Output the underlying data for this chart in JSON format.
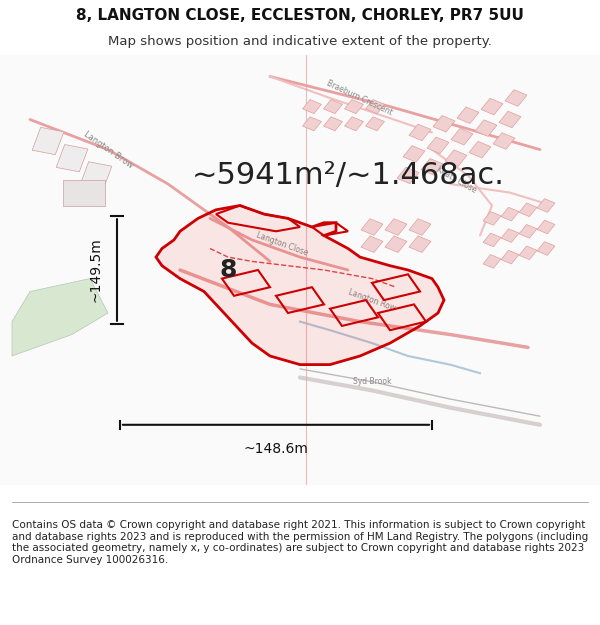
{
  "title_line1": "8, LANGTON CLOSE, ECCLESTON, CHORLEY, PR7 5UU",
  "title_line2": "Map shows position and indicative extent of the property.",
  "area_text": "~5941m²/~1.468ac.",
  "label_8": "8",
  "dim_vertical": "~149.5m",
  "dim_horizontal": "~148.6m",
  "footer_text": "Contains OS data © Crown copyright and database right 2021. This information is subject to Crown copyright and database rights 2023 and is reproduced with the permission of HM Land Registry. The polygons (including the associated geometry, namely x, y co-ordinates) are subject to Crown copyright and database rights 2023 Ordnance Survey 100026316.",
  "map_bg": "#f8f0f0",
  "map_bg2": "#ffffff",
  "road_color": "#e8a0a0",
  "road_color2": "#f0c0c0",
  "highlight_color": "#cc0000",
  "dim_color": "#111111",
  "text_color": "#222222",
  "footer_color": "#222222",
  "title_fontsize": 11,
  "subtitle_fontsize": 9.5,
  "area_fontsize": 22,
  "label_fontsize": 18,
  "dim_fontsize": 10,
  "footer_fontsize": 7.5,
  "fig_width": 6.0,
  "fig_height": 6.25,
  "dpi": 100
}
